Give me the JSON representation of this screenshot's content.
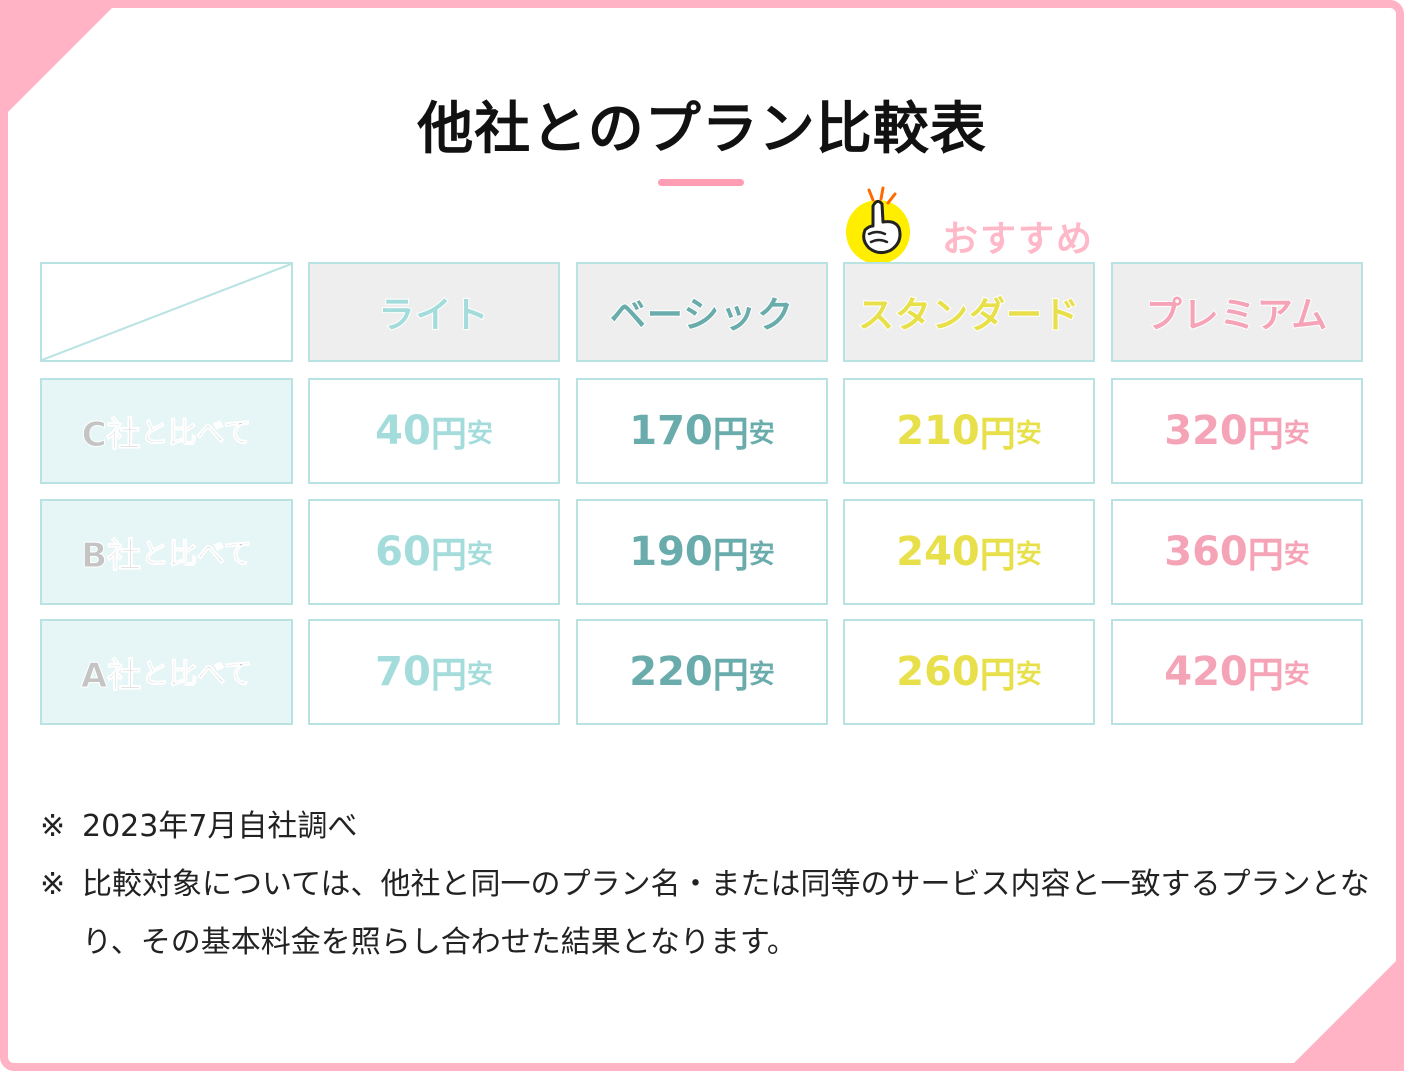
{
  "title": "他社とのプラン比較表",
  "recommend_label": "おすすめ",
  "colors": {
    "frame": "#ffb3c5",
    "light": "#a4dcdc",
    "basic": "#6aacac",
    "standard": "#e8e04a",
    "premium": "#f5a3b6"
  },
  "plans": [
    {
      "label": "ライト"
    },
    {
      "label": "ベーシック"
    },
    {
      "label": "スタンダード"
    },
    {
      "label": "プレミアム"
    }
  ],
  "rows": [
    {
      "company": "C社",
      "suffix": "と比べて",
      "values": [
        "40",
        "170",
        "210",
        "320"
      ]
    },
    {
      "company": "B社",
      "suffix": "と比べて",
      "values": [
        "60",
        "190",
        "240",
        "360"
      ]
    },
    {
      "company": "A社",
      "suffix": "と比べて",
      "values": [
        "70",
        "220",
        "260",
        "420"
      ]
    }
  ],
  "yen_label": "円",
  "cheaper_label": "安",
  "notes": [
    {
      "mark": "※",
      "text": "2023年7月自社調べ"
    },
    {
      "mark": "※",
      "text": "比較対象については、他社と同一のプラン名・または同等のサービス内容と一致するプランとなり、その基本料金を照らし合わせた結果となります。"
    }
  ]
}
